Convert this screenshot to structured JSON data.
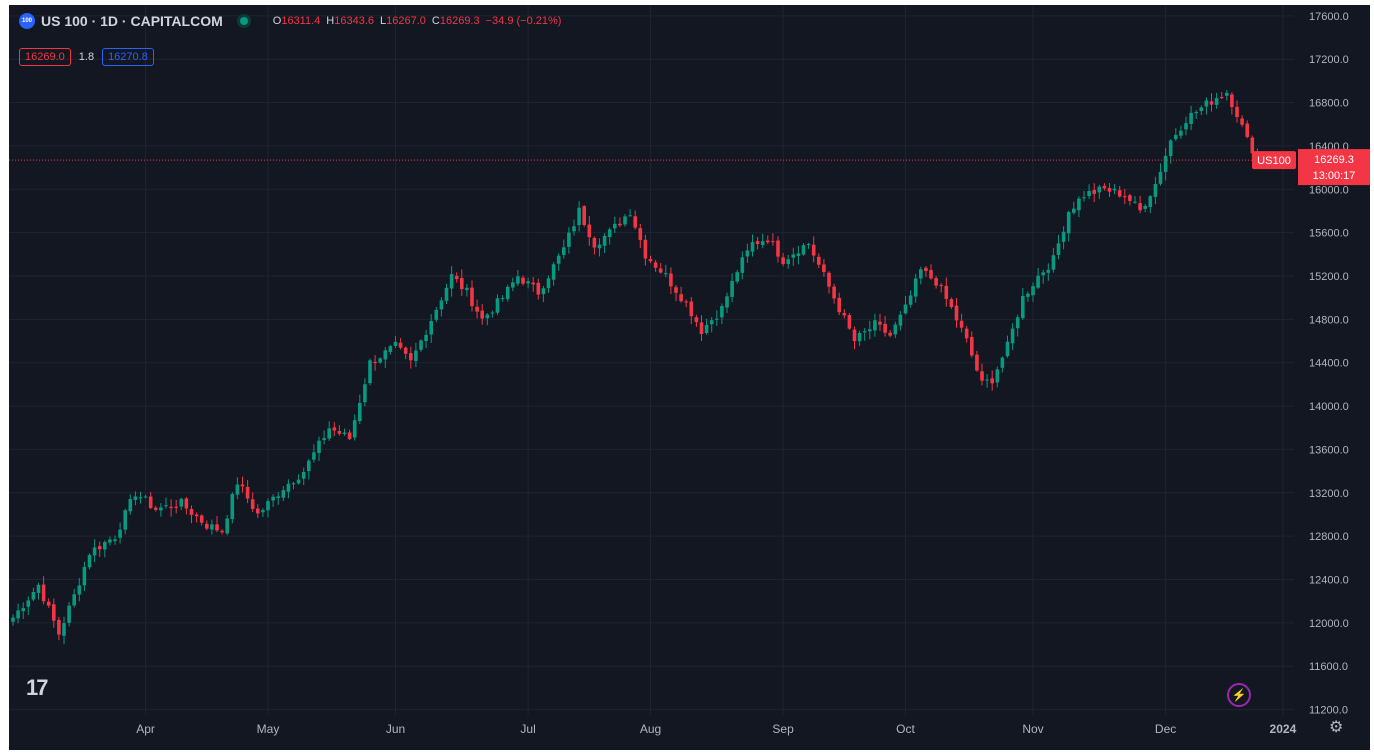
{
  "header": {
    "symbol_badge": "100",
    "title": "US 100 · 1D · CAPITALCOM",
    "open_label": "O",
    "open": "16311.4",
    "high_label": "H",
    "high": "16343.6",
    "low_label": "L",
    "low": "16267.0",
    "close_label": "C",
    "close": "16269.3",
    "change": "−34.9 (−0.21%)"
  },
  "quote": {
    "sell": "16269.0",
    "spread": "1.8",
    "buy": "16270.8"
  },
  "logo": "17",
  "price_tag": {
    "symbol": "US100",
    "price": "16269.3",
    "countdown": "13:00:17"
  },
  "colors": {
    "up": "#089981",
    "down": "#f23645",
    "background": "#131722",
    "grid": "#1f2330",
    "text": "#b2b5be"
  },
  "chart_data": {
    "type": "candlestick",
    "series_name": "US 100",
    "interval": "1D",
    "y_axis": {
      "ticks": [
        11200,
        11600,
        12000,
        12400,
        12800,
        13200,
        13600,
        14000,
        14400,
        14800,
        15200,
        15600,
        16000,
        16400,
        16800,
        17200,
        17600
      ],
      "range": [
        11150,
        17700
      ],
      "side": "right"
    },
    "x_axis": {
      "labels": [
        "Apr",
        "May",
        "Jun",
        "Jul",
        "Aug",
        "Sep",
        "Oct",
        "Nov",
        "Dec",
        "2024"
      ]
    },
    "last_price": 16269.3,
    "trend_anchors": [
      [
        0,
        12050
      ],
      [
        5,
        12350
      ],
      [
        9,
        11900
      ],
      [
        12,
        12250
      ],
      [
        15,
        12650
      ],
      [
        20,
        12800
      ],
      [
        24,
        13200
      ],
      [
        28,
        13050
      ],
      [
        33,
        13100
      ],
      [
        38,
        12900
      ],
      [
        41,
        12850
      ],
      [
        44,
        13300
      ],
      [
        48,
        13000
      ],
      [
        53,
        13250
      ],
      [
        57,
        13400
      ],
      [
        62,
        13800
      ],
      [
        66,
        13700
      ],
      [
        70,
        14400
      ],
      [
        75,
        14550
      ],
      [
        78,
        14400
      ],
      [
        82,
        14800
      ],
      [
        86,
        15200
      ],
      [
        89,
        15050
      ],
      [
        92,
        14800
      ],
      [
        96,
        15000
      ],
      [
        99,
        15200
      ],
      [
        103,
        15050
      ],
      [
        108,
        15450
      ],
      [
        111,
        15800
      ],
      [
        114,
        15500
      ],
      [
        117,
        15600
      ],
      [
        121,
        15800
      ],
      [
        124,
        15400
      ],
      [
        128,
        15200
      ],
      [
        132,
        14950
      ],
      [
        135,
        14700
      ],
      [
        139,
        14900
      ],
      [
        142,
        15250
      ],
      [
        145,
        15500
      ],
      [
        148,
        15550
      ],
      [
        151,
        15350
      ],
      [
        154,
        15450
      ],
      [
        156,
        15500
      ],
      [
        159,
        15200
      ],
      [
        162,
        14900
      ],
      [
        165,
        14600
      ],
      [
        169,
        14750
      ],
      [
        172,
        14650
      ],
      [
        175,
        14900
      ],
      [
        178,
        15250
      ],
      [
        181,
        15150
      ],
      [
        184,
        14900
      ],
      [
        187,
        14600
      ],
      [
        190,
        14200
      ],
      [
        192,
        14250
      ],
      [
        195,
        14550
      ],
      [
        198,
        15000
      ],
      [
        201,
        15200
      ],
      [
        204,
        15350
      ],
      [
        207,
        15800
      ],
      [
        210,
        15950
      ],
      [
        214,
        16000
      ],
      [
        218,
        15950
      ],
      [
        221,
        15800
      ],
      [
        224,
        16050
      ],
      [
        227,
        16450
      ],
      [
        230,
        16650
      ],
      [
        233,
        16750
      ],
      [
        236,
        16850
      ],
      [
        238,
        16900
      ],
      [
        240,
        16700
      ],
      [
        242,
        16450
      ],
      [
        244,
        16300
      ],
      [
        245,
        16269.3
      ]
    ],
    "month_labels": [
      {
        "label": "Apr",
        "index": 26
      },
      {
        "label": "May",
        "index": 50
      },
      {
        "label": "Jun",
        "index": 75
      },
      {
        "label": "Jul",
        "index": 101
      },
      {
        "label": "Aug",
        "index": 125
      },
      {
        "label": "Sep",
        "index": 151
      },
      {
        "label": "Oct",
        "index": 175
      },
      {
        "label": "Nov",
        "index": 200
      },
      {
        "label": "Dec",
        "index": 226
      },
      {
        "label": "2024",
        "index": 249
      }
    ]
  }
}
